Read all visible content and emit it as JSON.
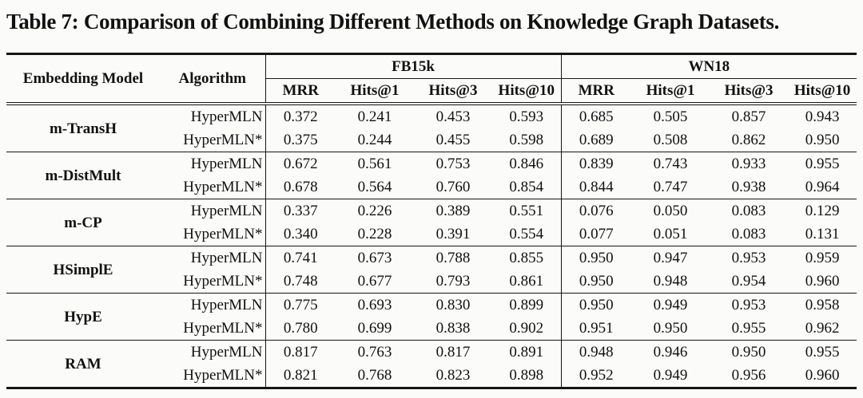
{
  "title": "Table 7: Comparison of Combining Different Methods on Knowledge Graph Datasets.",
  "colors": {
    "background": "#fbfbfa",
    "text": "#111111",
    "rule": "#161616"
  },
  "table": {
    "headers": {
      "embedding_model": "Embedding Model",
      "algorithm": "Algorithm",
      "datasets": [
        "FB15k",
        "WN18"
      ],
      "metrics": [
        "MRR",
        "Hits@1",
        "Hits@3",
        "Hits@10"
      ]
    },
    "groups": [
      {
        "model": "m-TransH",
        "rows": [
          {
            "algorithm": "HyperMLN",
            "fb15k": [
              "0.372",
              "0.241",
              "0.453",
              "0.593"
            ],
            "wn18": [
              "0.685",
              "0.505",
              "0.857",
              "0.943"
            ]
          },
          {
            "algorithm": "HyperMLN*",
            "fb15k": [
              "0.375",
              "0.244",
              "0.455",
              "0.598"
            ],
            "wn18": [
              "0.689",
              "0.508",
              "0.862",
              "0.950"
            ]
          }
        ]
      },
      {
        "model": "m-DistMult",
        "rows": [
          {
            "algorithm": "HyperMLN",
            "fb15k": [
              "0.672",
              "0.561",
              "0.753",
              "0.846"
            ],
            "wn18": [
              "0.839",
              "0.743",
              "0.933",
              "0.955"
            ]
          },
          {
            "algorithm": "HyperMLN*",
            "fb15k": [
              "0.678",
              "0.564",
              "0.760",
              "0.854"
            ],
            "wn18": [
              "0.844",
              "0.747",
              "0.938",
              "0.964"
            ]
          }
        ]
      },
      {
        "model": "m-CP",
        "rows": [
          {
            "algorithm": "HyperMLN",
            "fb15k": [
              "0.337",
              "0.226",
              "0.389",
              "0.551"
            ],
            "wn18": [
              "0.076",
              "0.050",
              "0.083",
              "0.129"
            ]
          },
          {
            "algorithm": "HyperMLN*",
            "fb15k": [
              "0.340",
              "0.228",
              "0.391",
              "0.554"
            ],
            "wn18": [
              "0.077",
              "0.051",
              "0.083",
              "0.131"
            ]
          }
        ]
      },
      {
        "model": "HSimplE",
        "rows": [
          {
            "algorithm": "HyperMLN",
            "fb15k": [
              "0.741",
              "0.673",
              "0.788",
              "0.855"
            ],
            "wn18": [
              "0.950",
              "0.947",
              "0.953",
              "0.959"
            ]
          },
          {
            "algorithm": "HyperMLN*",
            "fb15k": [
              "0.748",
              "0.677",
              "0.793",
              "0.861"
            ],
            "wn18": [
              "0.950",
              "0.948",
              "0.954",
              "0.960"
            ]
          }
        ]
      },
      {
        "model": "HypE",
        "rows": [
          {
            "algorithm": "HyperMLN",
            "fb15k": [
              "0.775",
              "0.693",
              "0.830",
              "0.899"
            ],
            "wn18": [
              "0.950",
              "0.949",
              "0.953",
              "0.958"
            ]
          },
          {
            "algorithm": "HyperMLN*",
            "fb15k": [
              "0.780",
              "0.699",
              "0.838",
              "0.902"
            ],
            "wn18": [
              "0.951",
              "0.950",
              "0.955",
              "0.962"
            ]
          }
        ]
      },
      {
        "model": "RAM",
        "rows": [
          {
            "algorithm": "HyperMLN",
            "fb15k": [
              "0.817",
              "0.763",
              "0.817",
              "0.891"
            ],
            "wn18": [
              "0.948",
              "0.946",
              "0.950",
              "0.955"
            ]
          },
          {
            "algorithm": "HyperMLN*",
            "fb15k": [
              "0.821",
              "0.768",
              "0.823",
              "0.898"
            ],
            "wn18": [
              "0.952",
              "0.949",
              "0.956",
              "0.960"
            ]
          }
        ]
      }
    ]
  }
}
